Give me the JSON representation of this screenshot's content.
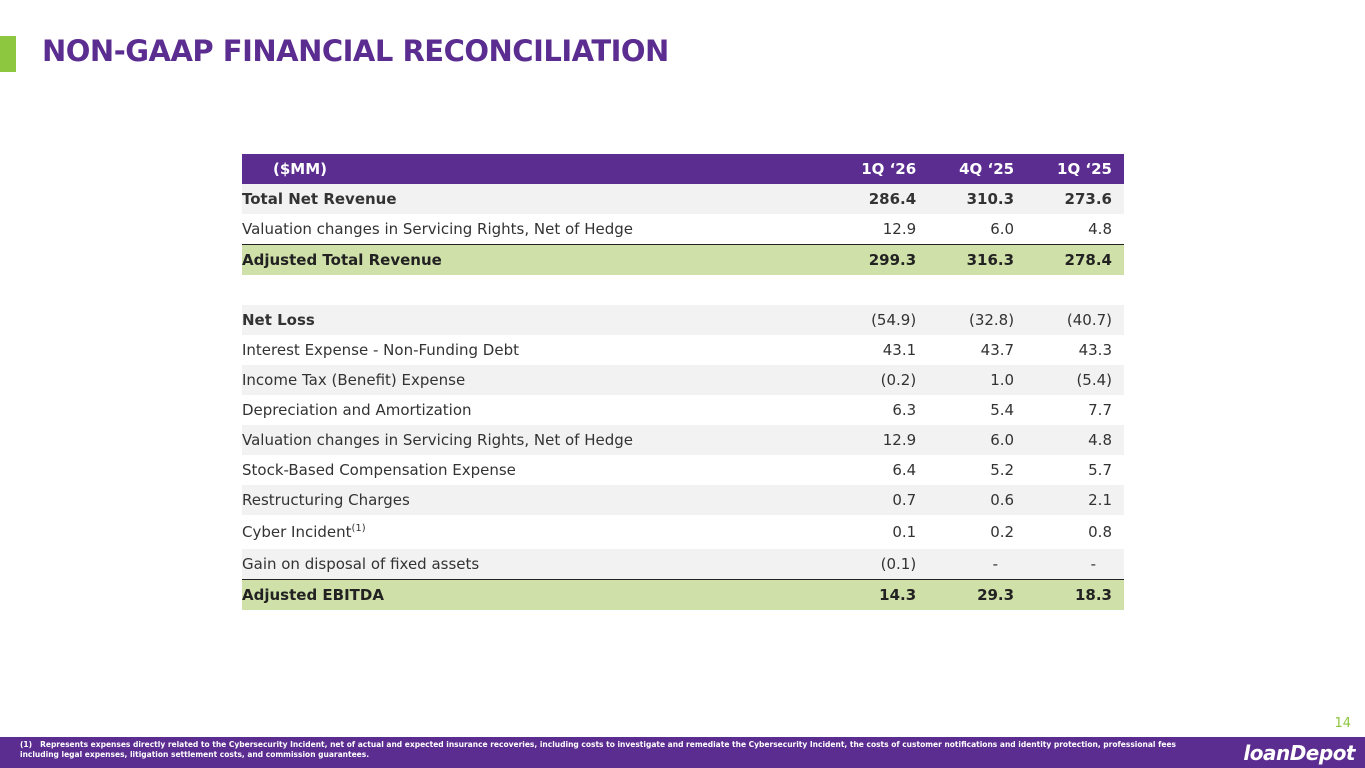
{
  "title": "NON-GAAP FINANCIAL RECONCILIATION",
  "table": {
    "header": {
      "label": "($MM)",
      "columns": [
        "1Q ‘26",
        "4Q ‘25",
        "1Q ‘25"
      ]
    },
    "rows": [
      {
        "label": "Total Net Revenue",
        "values": [
          "286.4",
          "310.3",
          "273.6"
        ]
      },
      {
        "label": "Valuation changes in Servicing Rights, Net of Hedge",
        "values": [
          "12.9",
          "6.0",
          "4.8"
        ]
      },
      {
        "label": "Adjusted Total Revenue",
        "values": [
          "299.3",
          "316.3",
          "278.4"
        ]
      },
      {
        "label": "Net Loss",
        "values": [
          "(54.9)",
          "(32.8)",
          "(40.7)"
        ]
      },
      {
        "label": "Interest Expense - Non-Funding Debt",
        "values": [
          "43.1",
          "43.7",
          "43.3"
        ]
      },
      {
        "label": "Income Tax (Benefit) Expense",
        "values": [
          "(0.2)",
          "1.0",
          "(5.4)"
        ]
      },
      {
        "label": "Depreciation and Amortization",
        "values": [
          "6.3",
          "5.4",
          "7.7"
        ]
      },
      {
        "label": "Valuation changes in Servicing Rights, Net of Hedge",
        "values": [
          "12.9",
          "6.0",
          "4.8"
        ]
      },
      {
        "label": "Stock-Based Compensation Expense",
        "values": [
          "6.4",
          "5.2",
          "5.7"
        ]
      },
      {
        "label": "Restructuring Charges",
        "values": [
          "0.7",
          "0.6",
          "2.1"
        ]
      },
      {
        "label": "Cyber Incident",
        "sup": "(1)",
        "values": [
          "0.1",
          "0.2",
          "0.8"
        ]
      },
      {
        "label": "Gain on disposal of fixed assets",
        "values": [
          "(0.1)",
          "-",
          "-"
        ]
      },
      {
        "label": "Adjusted EBITDA",
        "values": [
          "14.3",
          "29.3",
          "18.3"
        ]
      }
    ]
  },
  "footnote": {
    "marker": "(1)",
    "text": "Represents expenses directly related to the Cybersecurity Incident, net of actual and expected insurance recoveries, including costs to investigate and remediate the Cybersecurity Incident, the costs of customer notifications and identity protection, professional fees including legal expenses, litigation settlement costs, and commission guarantees."
  },
  "page_number": "14",
  "logo_text": "loanDepot",
  "colors": {
    "brand_purple": "#5c2d91",
    "accent_green": "#8dc63f",
    "adjusted_row_green": "#cfe0a8",
    "row_shade": "#f2f2f2"
  }
}
